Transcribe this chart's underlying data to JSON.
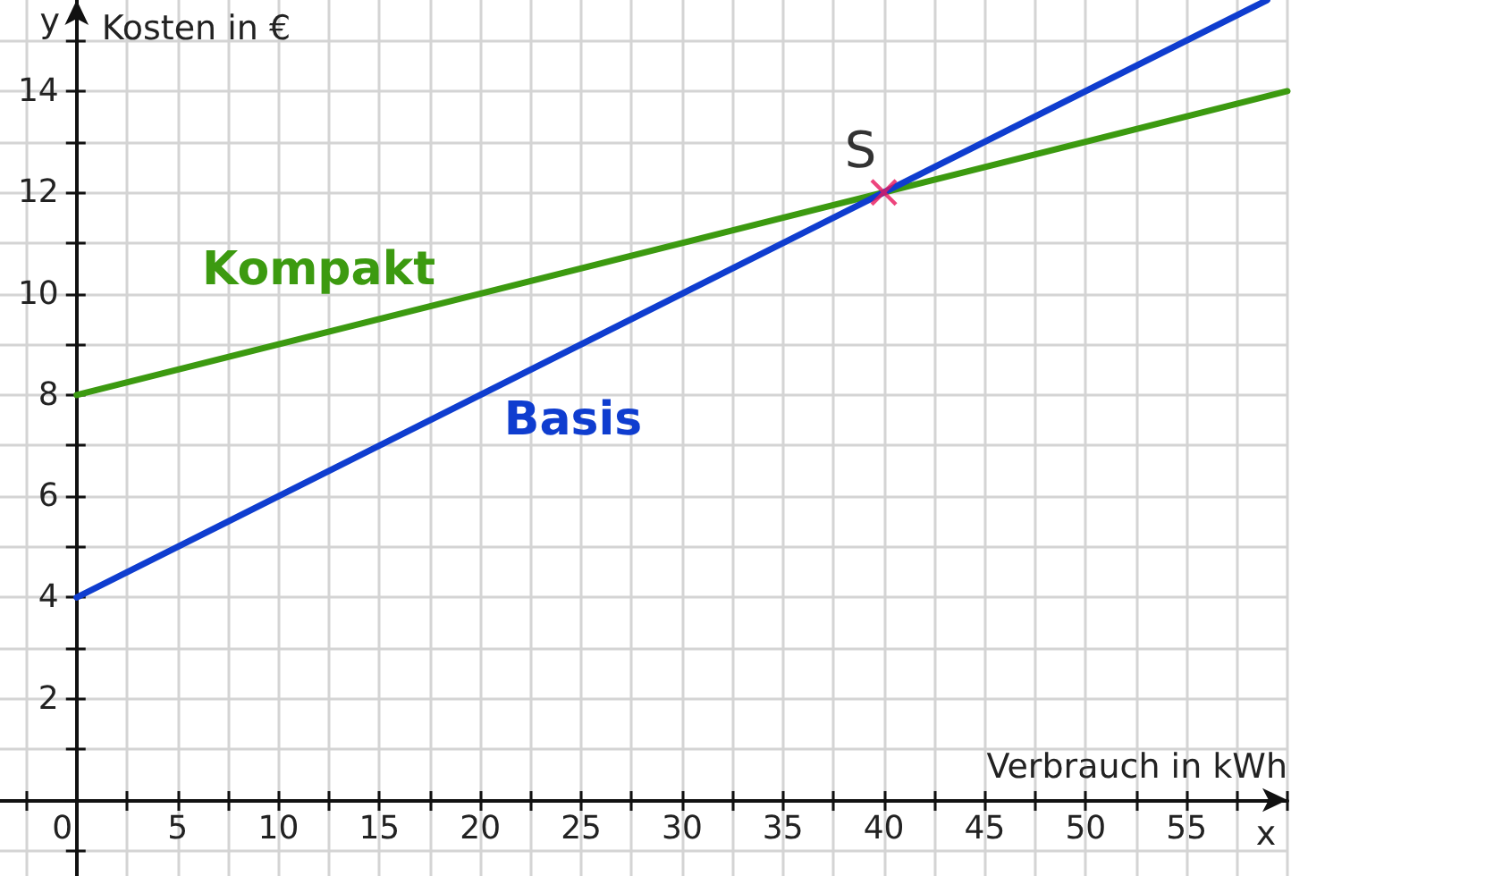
{
  "chart_data": {
    "type": "line",
    "xlabel": "Verbrauch in kWh",
    "ylabel": "Kosten in €",
    "annotations": [
      "y",
      "x"
    ],
    "series": [
      {
        "name": "Kompakt",
        "color": "#3c9a10",
        "x": [
          0,
          60
        ],
        "values": [
          8,
          14
        ]
      },
      {
        "name": "Basis",
        "color": "#0f3dcf",
        "x": [
          0,
          59
        ],
        "values": [
          4,
          15.8
        ]
      },
      {
        "name": "S",
        "type": "scatter",
        "color": "#e8175d",
        "marker": "cross",
        "x": [
          40
        ],
        "values": [
          12
        ]
      }
    ],
    "xlim": [
      -3.8,
      60
    ],
    "ylim": [
      -1.5,
      15.8
    ],
    "xticks": [
      {
        "value": -2.5,
        "label": null
      },
      0,
      {
        "value": 2.5,
        "label": null
      },
      5,
      {
        "value": 7.5,
        "label": null
      },
      10,
      {
        "value": 12.5,
        "label": null
      },
      15,
      {
        "value": 17.5,
        "label": null
      },
      20,
      {
        "value": 22.5,
        "label": null
      },
      25,
      {
        "value": 27.5,
        "label": null
      },
      30,
      {
        "value": 32.5,
        "label": null
      },
      35,
      {
        "value": 37.5,
        "label": null
      },
      40,
      {
        "value": 42.5,
        "label": null
      },
      45,
      {
        "value": 47.5,
        "label": null
      },
      50,
      {
        "value": 52.5,
        "label": null
      },
      55,
      {
        "value": 57.5,
        "label": null
      },
      {
        "value": 60,
        "label": null
      }
    ],
    "yticks": [
      {
        "value": -1,
        "label": null
      },
      {
        "value": 0,
        "label": null
      },
      {
        "value": 1,
        "label": null
      },
      2,
      {
        "value": 3,
        "label": null
      },
      4,
      {
        "value": 5,
        "label": null
      },
      6,
      {
        "value": 7,
        "label": null
      },
      8,
      {
        "value": 9,
        "label": null
      },
      10,
      {
        "value": 11,
        "label": null
      },
      12,
      {
        "value": 13,
        "label": null
      },
      14,
      {
        "value": 15,
        "label": null
      }
    ],
    "grid": true,
    "legend": false,
    "marker": "none",
    "line_style": "solid"
  }
}
